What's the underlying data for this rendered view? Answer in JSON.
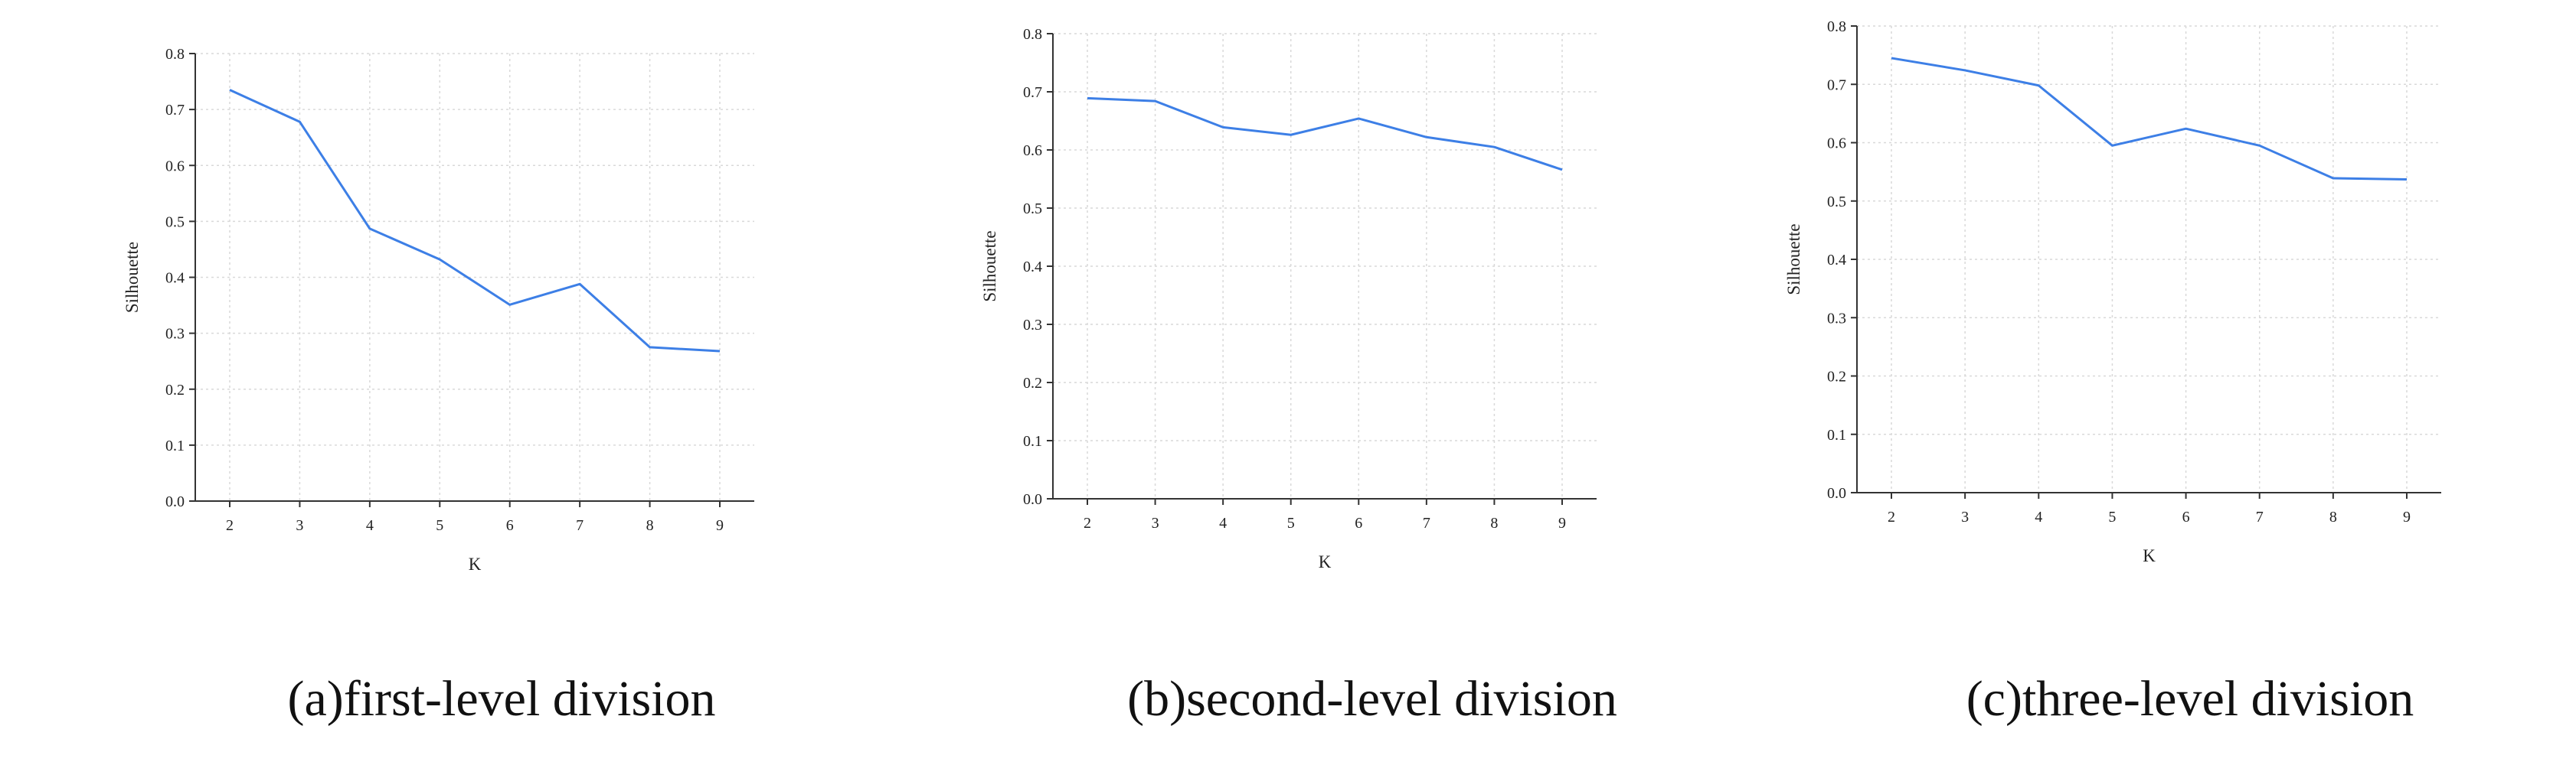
{
  "chart_data": [
    {
      "type": "line",
      "caption": "(a)first-level division",
      "xlabel": "K",
      "ylabel": "Silhouette",
      "x": [
        2,
        3,
        4,
        5,
        6,
        7,
        8,
        9
      ],
      "xticks": [
        "2",
        "3",
        "4",
        "5",
        "6",
        "7",
        "8",
        "9"
      ],
      "yticks": [
        "0.0",
        "0.1",
        "0.2",
        "0.3",
        "0.4",
        "0.5",
        "0.6",
        "0.7",
        "0.8"
      ],
      "ylim": [
        0,
        0.8
      ],
      "grid": true,
      "series": [
        {
          "values": [
            0.735,
            0.678,
            0.487,
            0.432,
            0.351,
            0.388,
            0.275,
            0.268
          ]
        }
      ]
    },
    {
      "type": "line",
      "caption": "(b)second-level division",
      "xlabel": "K",
      "ylabel": "Silhouette",
      "x": [
        2,
        3,
        4,
        5,
        6,
        7,
        8,
        9
      ],
      "xticks": [
        "2",
        "3",
        "4",
        "5",
        "6",
        "7",
        "8",
        "9"
      ],
      "yticks": [
        "0.0",
        "0.1",
        "0.2",
        "0.3",
        "0.4",
        "0.5",
        "0.6",
        "0.7",
        "0.8"
      ],
      "ylim": [
        0,
        0.8
      ],
      "grid": true,
      "series": [
        {
          "values": [
            0.689,
            0.684,
            0.639,
            0.626,
            0.654,
            0.622,
            0.605,
            0.566
          ]
        }
      ]
    },
    {
      "type": "line",
      "caption": "(c)three-level division",
      "xlabel": "K",
      "ylabel": "Silhouette",
      "x": [
        2,
        3,
        4,
        5,
        6,
        7,
        8,
        9
      ],
      "xticks": [
        "2",
        "3",
        "4",
        "5",
        "6",
        "7",
        "8",
        "9"
      ],
      "yticks": [
        "0.0",
        "0.1",
        "0.2",
        "0.3",
        "0.4",
        "0.5",
        "0.6",
        "0.7",
        "0.8"
      ],
      "ylim": [
        0,
        0.8
      ],
      "grid": true,
      "series": [
        {
          "values": [
            0.745,
            0.724,
            0.698,
            0.595,
            0.624,
            0.595,
            0.539,
            0.537
          ]
        }
      ]
    }
  ],
  "colors": {
    "line": "#3d7fe6",
    "axis": "#333333",
    "grid": "#d9d9d9"
  }
}
